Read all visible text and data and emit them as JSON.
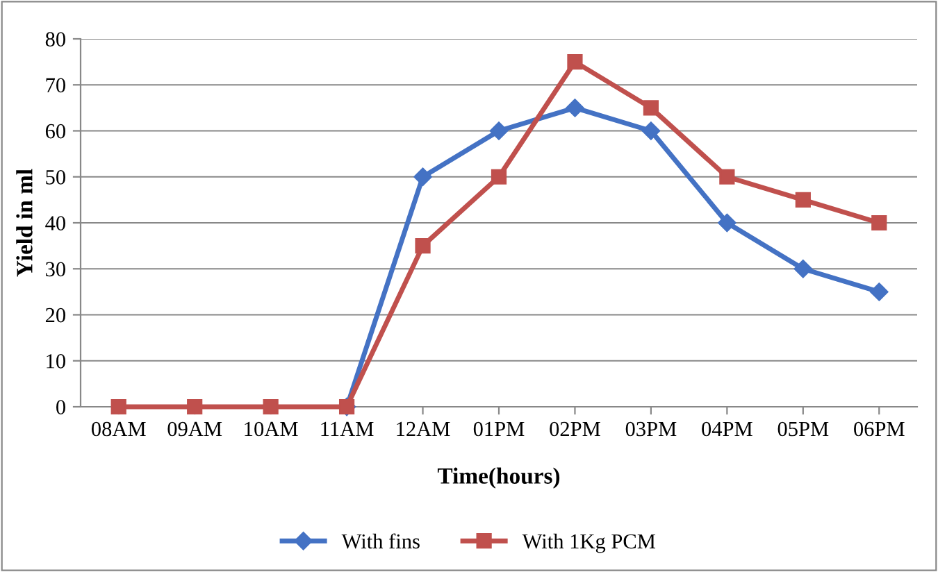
{
  "chart_data": {
    "type": "line",
    "xlabel": "Time(hours)",
    "ylabel": "Yield in ml",
    "categories": [
      "08AM",
      "09AM",
      "10AM",
      "11AM",
      "12AM",
      "01PM",
      "02PM",
      "03PM",
      "04PM",
      "05PM",
      "06PM"
    ],
    "series": [
      {
        "name": "With fins",
        "color": "#4472c4",
        "marker": "diamond",
        "values": [
          null,
          null,
          null,
          0,
          50,
          60,
          65,
          60,
          40,
          30,
          25
        ]
      },
      {
        "name": "With 1Kg PCM",
        "color": "#c0504d",
        "marker": "square",
        "values": [
          0,
          0,
          0,
          0,
          35,
          50,
          75,
          65,
          50,
          45,
          40
        ]
      }
    ],
    "ylim": [
      0,
      80
    ],
    "yticks": [
      0,
      10,
      20,
      30,
      40,
      50,
      60,
      70,
      80
    ],
    "grid": "y",
    "legend": "bottom",
    "line_style": "solid"
  }
}
